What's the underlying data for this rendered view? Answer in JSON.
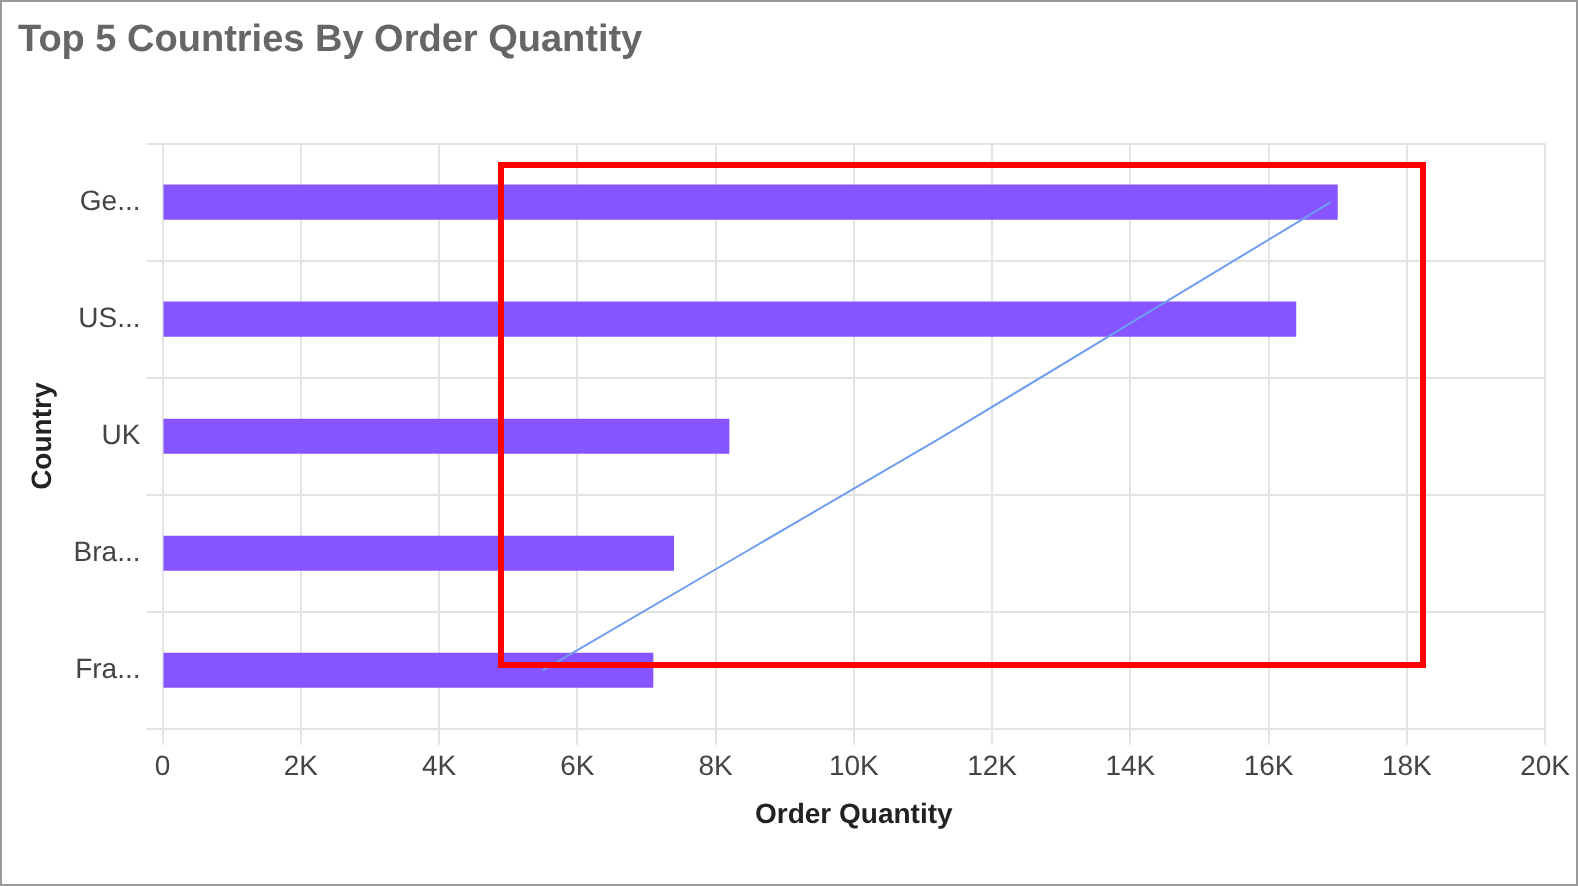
{
  "chart_data": {
    "type": "bar",
    "orientation": "horizontal",
    "title": "Top 5 Countries By Order Quantity",
    "xlabel": "Order Quantity",
    "ylabel": "Country",
    "categories": [
      "Ge...",
      "US...",
      "UK",
      "Bra...",
      "Fra..."
    ],
    "series": [
      {
        "color": "#8655ff",
        "values": [
          17000,
          16400,
          8200,
          7400,
          7100
        ]
      },
      {
        "type": "line",
        "color": "#6f9ef0",
        "values": [
          16900,
          14100,
          11300,
          8400,
          5500
        ]
      }
    ],
    "xlim": [
      0,
      20000
    ],
    "xticks": [
      0,
      {
        "value": 2000,
        "label": "2K"
      },
      {
        "value": 4000,
        "label": "4K"
      },
      {
        "value": 6000,
        "label": "6K"
      },
      {
        "value": 8000,
        "label": "8K"
      },
      {
        "value": 10000,
        "label": "10K"
      },
      {
        "value": 12000,
        "label": "12K"
      },
      {
        "value": 14000,
        "label": "14K"
      },
      {
        "value": 16000,
        "label": "16K"
      },
      {
        "value": 18000,
        "label": "18K"
      },
      {
        "value": 20000,
        "label": "20K"
      }
    ],
    "grid": true,
    "legend": false
  }
}
